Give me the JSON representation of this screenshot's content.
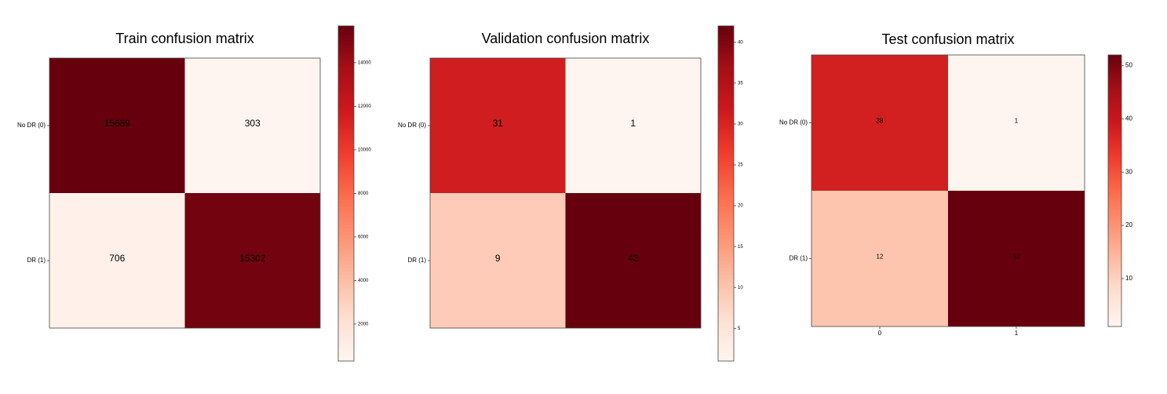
{
  "chart_data": [
    {
      "type": "heatmap",
      "title": "Train confusion matrix",
      "row_labels": [
        "No DR (0)",
        "DR (1)"
      ],
      "col_labels": [],
      "matrix": [
        [
          15689,
          303
        ],
        [
          706,
          15302
        ]
      ],
      "colormap": "Reds",
      "colorbar": {
        "min": 303,
        "max": 15689,
        "ticks": [
          2000,
          4000,
          6000,
          8000,
          10000,
          12000,
          14000
        ]
      }
    },
    {
      "type": "heatmap",
      "title": "Validation confusion matrix",
      "row_labels": [
        "No DR (0)",
        "DR (1)"
      ],
      "col_labels": [],
      "matrix": [
        [
          31,
          1
        ],
        [
          9,
          42
        ]
      ],
      "colormap": "Reds",
      "colorbar": {
        "min": 1,
        "max": 42,
        "ticks": [
          5,
          10,
          15,
          20,
          25,
          30,
          35,
          40
        ]
      }
    },
    {
      "type": "heatmap",
      "title": "Test confusion matrix",
      "row_labels": [
        "No DR (0)",
        "DR (1)"
      ],
      "col_labels": [
        "0",
        "1"
      ],
      "matrix": [
        [
          38,
          1
        ],
        [
          12,
          52
        ]
      ],
      "colormap": "Reds",
      "colorbar": {
        "min": 1,
        "max": 52,
        "ticks": [
          10,
          20,
          30,
          40,
          50
        ]
      }
    }
  ]
}
